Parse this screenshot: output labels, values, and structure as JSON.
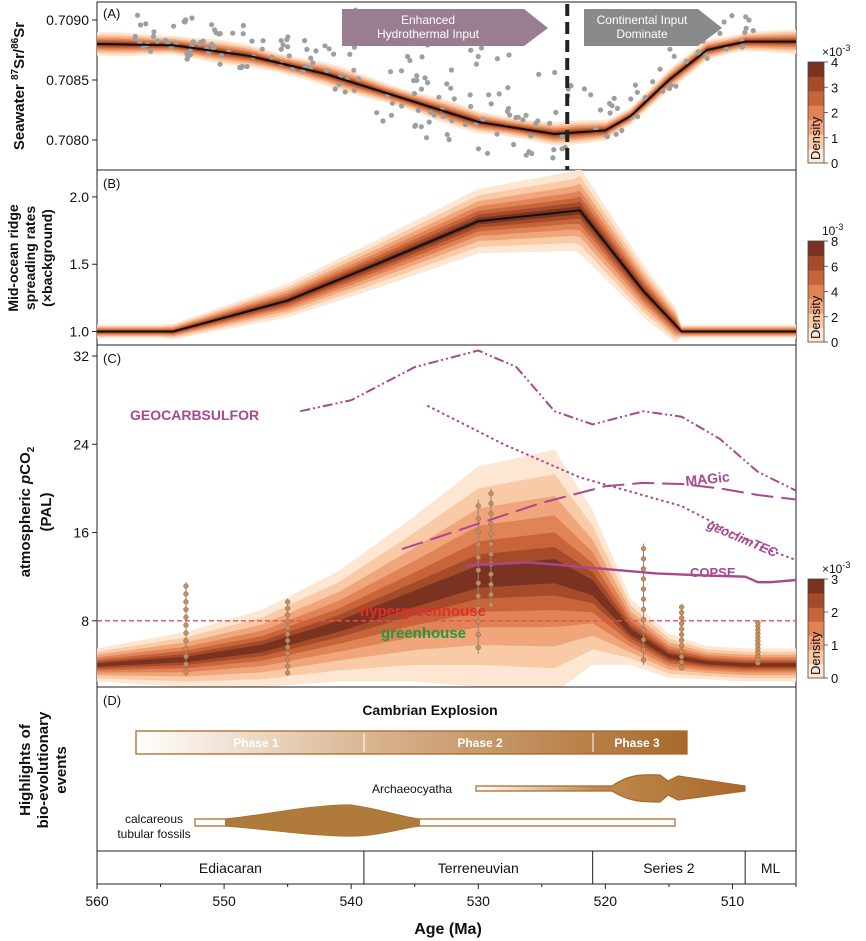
{
  "x_axis": {
    "label": "Age (Ma)",
    "ticks": [
      560,
      550,
      540,
      530,
      520,
      510
    ],
    "xlim": [
      560,
      505
    ],
    "reversed": true
  },
  "colors": {
    "density_ramp": [
      "#ffffff",
      "#fde7d2",
      "#f8cba6",
      "#f0a57a",
      "#e08357",
      "#c8643a",
      "#a54b2a",
      "#7a3320"
    ],
    "mean_line": "#111111",
    "points": "#9e9e9e",
    "model_curves": "#a8488f",
    "hydrothermal_arrow": "#9a7d91",
    "continental_arrow": "#8a8a8a",
    "threshold_line": "#e05555",
    "hypergreenhouse_text": "#e0302c",
    "greenhouse_text": "#1e9a3e",
    "cambrian_fill": "#a8692a",
    "fossil_fill": "#b07a3a"
  },
  "panel_a": {
    "tag": "(A)",
    "ylabel_main": "Seawater ",
    "ylabel_sup1": "87",
    "ylabel_mid": "Sr/",
    "ylabel_sup2": "86",
    "ylabel_end": "Sr",
    "yticks": [
      "0.7080",
      "0.7085",
      "0.7090"
    ],
    "ylim": [
      0.70775,
      0.70915
    ],
    "arrow_hydro_line1": "Enhanced",
    "arrow_hydro_line2": "Hydrothermal Input",
    "arrow_cont_line1": "Continental Input",
    "arrow_cont_line2": "Dominate",
    "divider_age": 523,
    "colorbar": {
      "exponent": "×10",
      "exponent_sup": "-3",
      "label": "Density",
      "ticks": [
        "0",
        "1",
        "2",
        "3",
        "4"
      ]
    }
  },
  "panel_b": {
    "tag": "(B)",
    "ylabel_line1": "Mid-ocean ridge",
    "ylabel_line2": "spreading rates",
    "ylabel_line3": "(×background)",
    "yticks": [
      "1.0",
      "1.5",
      "2.0"
    ],
    "ylim": [
      0.9,
      2.2
    ],
    "colorbar": {
      "exponent": "10",
      "exponent_sup": "-3",
      "label": "Density",
      "ticks": [
        "0",
        "2",
        "4",
        "6",
        "8"
      ]
    }
  },
  "panel_c": {
    "tag": "(C)",
    "ylabel_line1a": "atmospheric ",
    "ylabel_line1b": "p",
    "ylabel_line1c": "CO",
    "ylabel_line1d": "2",
    "ylabel_line2": "(PAL)",
    "yticks": [
      "8",
      "16",
      "24",
      "32"
    ],
    "ylim": [
      2,
      33
    ],
    "threshold": 8,
    "hypergreenhouse_label": "hypergreenhouse",
    "greenhouse_label": "greenhouse",
    "model_labels": {
      "geocarb": "GEOCARBSULFOR",
      "magic": "MAGic",
      "geoclim": "geoclimTEC",
      "copse": "COPSE"
    },
    "colorbar": {
      "exponent": "×10",
      "exponent_sup": "-3",
      "label": "Density",
      "ticks": [
        "0",
        "1",
        "2",
        "3"
      ]
    }
  },
  "panel_d": {
    "tag": "(D)",
    "ylabel_line1": "Highlights of",
    "ylabel_line2": "bio-evolutionary",
    "ylabel_line3": "events",
    "cambrian_title": "Cambrian Explosion",
    "phases": [
      "Phase 1",
      "Phase 2",
      "Phase 3"
    ],
    "archaeocyatha_label": "Archaeocyatha",
    "fossils_label_line1": "calcareous",
    "fossils_label_line2": "tubular fossils"
  },
  "stages": [
    {
      "name": "Ediacaran",
      "from": 560,
      "to": 539
    },
    {
      "name": "Terreneuvian",
      "from": 539,
      "to": 521
    },
    {
      "name": "Series 2",
      "from": 521,
      "to": 509
    },
    {
      "name": "ML",
      "from": 509,
      "to": 505
    }
  ],
  "chart_data": [
    {
      "type": "area",
      "panel": "A",
      "ylabel": "Seawater 87Sr/86Sr",
      "ylim": [
        0.70775,
        0.70915
      ],
      "mean_curve": {
        "x": [
          560,
          554,
          548,
          542,
          536,
          530,
          524,
          520,
          518,
          515,
          512,
          509,
          506,
          505
        ],
        "y": [
          0.7088,
          0.70879,
          0.7087,
          0.70855,
          0.70835,
          0.70815,
          0.70805,
          0.70808,
          0.7082,
          0.7085,
          0.70875,
          0.70882,
          0.70882,
          0.70882
        ]
      },
      "band_width": [
        3e-05,
        5e-05,
        8e-05,
        0.00012,
        0.00015,
        0.00018,
        0.00016,
        0.00012
      ]
    },
    {
      "type": "area",
      "panel": "B",
      "ylabel": "Mid-ocean ridge spreading rates (×background)",
      "ylim": [
        0.9,
        2.2
      ],
      "mean_curve": {
        "x": [
          560,
          554,
          545,
          538,
          530,
          522,
          517,
          514,
          510,
          505
        ],
        "y": [
          1.0,
          1.0,
          1.23,
          1.5,
          1.82,
          1.9,
          1.3,
          1.0,
          1.0,
          1.0
        ]
      },
      "band_width": [
        0.02,
        0.06,
        0.1,
        0.14,
        0.18,
        0.22,
        0.16,
        0.06
      ]
    },
    {
      "type": "line",
      "panel": "C",
      "ylabel": "atmospheric pCO2 (PAL)",
      "ylim": [
        2,
        33
      ],
      "series": [
        {
          "name": "GEOCARBSULFOR",
          "style": "dash-dot-dot",
          "x": [
            544,
            540,
            535,
            530,
            527,
            524,
            521,
            517,
            514,
            511,
            508,
            505
          ],
          "y": [
            27,
            28,
            31,
            32.5,
            31,
            27,
            25.8,
            27,
            26.5,
            24.5,
            21.5,
            19.8
          ]
        },
        {
          "name": "MAGic",
          "style": "long-dash",
          "x": [
            536,
            530,
            525,
            520,
            517,
            514,
            511,
            508,
            505
          ],
          "y": [
            14.5,
            16.8,
            18.7,
            20.2,
            20.5,
            20.4,
            20,
            19.4,
            19
          ]
        },
        {
          "name": "geoclimTEC",
          "style": "dotted",
          "x": [
            534,
            528,
            522,
            518,
            514,
            510,
            508,
            505
          ],
          "y": [
            27.5,
            24,
            21,
            19.7,
            18.4,
            16,
            14.8,
            13.5
          ]
        },
        {
          "name": "COPSE",
          "style": "solid",
          "x": [
            531,
            526,
            521,
            516,
            512,
            509,
            508,
            507,
            505
          ],
          "y": [
            13,
            13.3,
            12.8,
            12.3,
            12.1,
            12,
            11.5,
            11.5,
            11.7
          ]
        }
      ],
      "density_mean": {
        "x": [
          560,
          553,
          547,
          541,
          535,
          530,
          524,
          521,
          518,
          515,
          512,
          509,
          505
        ],
        "y": [
          4,
          4.5,
          5.5,
          7.5,
          10,
          12,
          12.5,
          11,
          7,
          4.8,
          4.2,
          4,
          4
        ]
      },
      "density_halfwidth": [
        1.5,
        2.5,
        3.5,
        5,
        7.5,
        10,
        11,
        7,
        3,
        2,
        1.5,
        1.5,
        1.5
      ],
      "threshold_line": 8,
      "proxy_clusters": [
        {
          "x": 553,
          "ymin": 3.0,
          "ymax": 11.5
        },
        {
          "x": 545,
          "ymin": 3.0,
          "ymax": 10.0
        },
        {
          "x": 530,
          "ymin": 5.0,
          "ymax": 19.0
        },
        {
          "x": 529,
          "ymin": 9.0,
          "ymax": 20.0
        },
        {
          "x": 517,
          "ymin": 4.0,
          "ymax": 15.0
        },
        {
          "x": 514,
          "ymin": 3.5,
          "ymax": 9.5
        },
        {
          "x": 508,
          "ymin": 4.0,
          "ymax": 8.0
        }
      ]
    },
    {
      "type": "table",
      "panel": "D",
      "events": [
        {
          "name": "Cambrian Explosion",
          "from": 557,
          "to": 513.5,
          "phases": [
            {
              "name": "Phase 1",
              "from": 557,
              "to": 539
            },
            {
              "name": "Phase 2",
              "from": 539,
              "to": 521
            },
            {
              "name": "Phase 3",
              "from": 521,
              "to": 513.5
            }
          ]
        },
        {
          "name": "Archaeocyatha",
          "from": 530,
          "to": 509
        },
        {
          "name": "calcareous tubular fossils",
          "from": 552.5,
          "to": 514.5
        }
      ]
    }
  ]
}
